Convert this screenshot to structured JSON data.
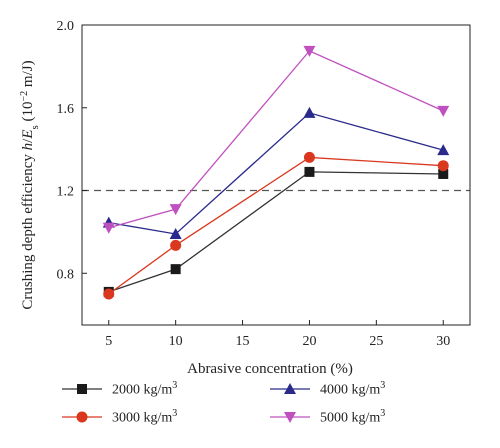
{
  "chart_data": {
    "type": "line",
    "xlabel": "Abrasive concentration (%)",
    "ylabel_main": "Crushing depth efficiency ",
    "ylabel_h": "h",
    "ylabel_E": "E",
    "ylabel_sub": "s",
    "ylabel_unit_pre": " (10",
    "ylabel_exp": "−2",
    "ylabel_unit_post": " m/J)",
    "xlim": [
      3,
      32
    ],
    "ylim": [
      0.55,
      2.0
    ],
    "xticks": [
      5,
      10,
      15,
      20,
      25,
      30
    ],
    "yticks": [
      0.8,
      1.2,
      1.6,
      2.0
    ],
    "ytick_labels": [
      "0.8",
      "1.2",
      "1.6",
      "2.0"
    ],
    "reference_line": {
      "y": 1.2,
      "style": "dashed"
    },
    "x": [
      5,
      10,
      20,
      30
    ],
    "series": [
      {
        "name": "2000 kg/m",
        "exp": "3",
        "marker": "square",
        "color": "#1a1a1a",
        "line_color": "#333333",
        "values": [
          0.71,
          0.82,
          1.29,
          1.28
        ]
      },
      {
        "name": "3000 kg/m",
        "exp": "3",
        "marker": "circle",
        "color": "#d9381e",
        "line_color": "#d9381e",
        "values": [
          0.7,
          0.935,
          1.36,
          1.32
        ]
      },
      {
        "name": "4000 kg/m",
        "exp": "3",
        "marker": "triangle-up",
        "color": "#2a2a8c",
        "line_color": "#2a2a8c",
        "values": [
          1.045,
          0.99,
          1.575,
          1.395
        ]
      },
      {
        "name": "5000 kg/m",
        "exp": "3",
        "marker": "triangle-down",
        "color": "#c050c0",
        "line_color": "#c050c0",
        "values": [
          1.02,
          1.11,
          1.875,
          1.585
        ]
      }
    ]
  }
}
